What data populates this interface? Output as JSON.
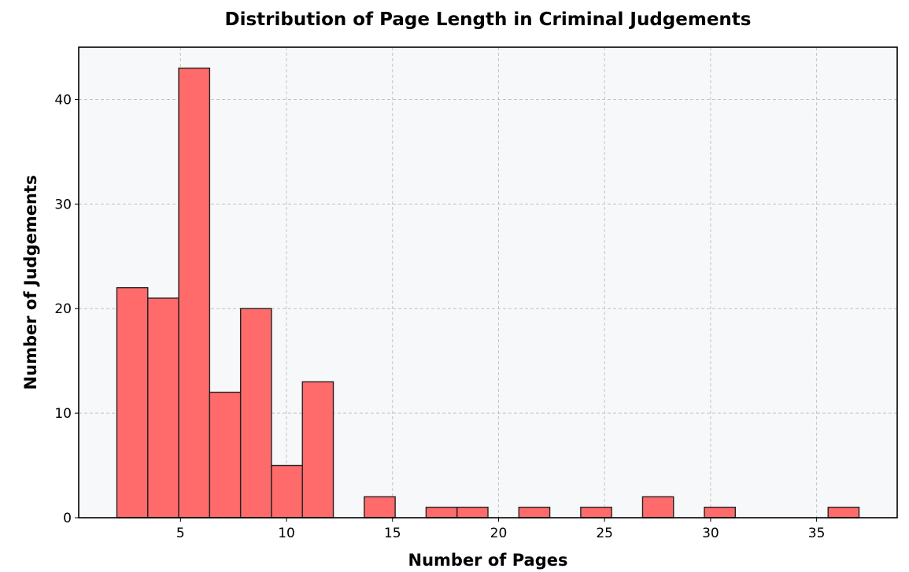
{
  "chart_data": {
    "type": "bar",
    "title": "Distribution of Page Length in Criminal Judgements",
    "xlabel": "Number of Pages",
    "ylabel": "Number of Judgements",
    "xlim": [
      0.2,
      38.8
    ],
    "ylim": [
      0,
      45
    ],
    "x_ticks": [
      5,
      10,
      15,
      20,
      25,
      30,
      35
    ],
    "y_ticks": [
      0,
      10,
      20,
      30,
      40
    ],
    "grid": true,
    "bin_width": 1.458,
    "bins": [
      {
        "start": 2.0,
        "count": 22
      },
      {
        "start": 3.458,
        "count": 21
      },
      {
        "start": 4.917,
        "count": 43
      },
      {
        "start": 6.375,
        "count": 12
      },
      {
        "start": 7.833,
        "count": 20
      },
      {
        "start": 9.292,
        "count": 5
      },
      {
        "start": 10.75,
        "count": 13
      },
      {
        "start": 12.208,
        "count": 0
      },
      {
        "start": 13.667,
        "count": 2
      },
      {
        "start": 15.125,
        "count": 0
      },
      {
        "start": 16.583,
        "count": 1
      },
      {
        "start": 18.042,
        "count": 1
      },
      {
        "start": 19.5,
        "count": 0
      },
      {
        "start": 20.958,
        "count": 1
      },
      {
        "start": 22.417,
        "count": 0
      },
      {
        "start": 23.875,
        "count": 1
      },
      {
        "start": 25.333,
        "count": 0
      },
      {
        "start": 26.792,
        "count": 2
      },
      {
        "start": 28.25,
        "count": 0
      },
      {
        "start": 29.708,
        "count": 1
      },
      {
        "start": 31.167,
        "count": 0
      },
      {
        "start": 32.625,
        "count": 0
      },
      {
        "start": 34.083,
        "count": 0
      },
      {
        "start": 35.542,
        "count": 1
      }
    ],
    "colors": {
      "bar_fill": "#ff6b6b",
      "bar_edge": "#222222",
      "plot_background": "#f7f8fa",
      "grid": "#c4c4c4"
    }
  }
}
